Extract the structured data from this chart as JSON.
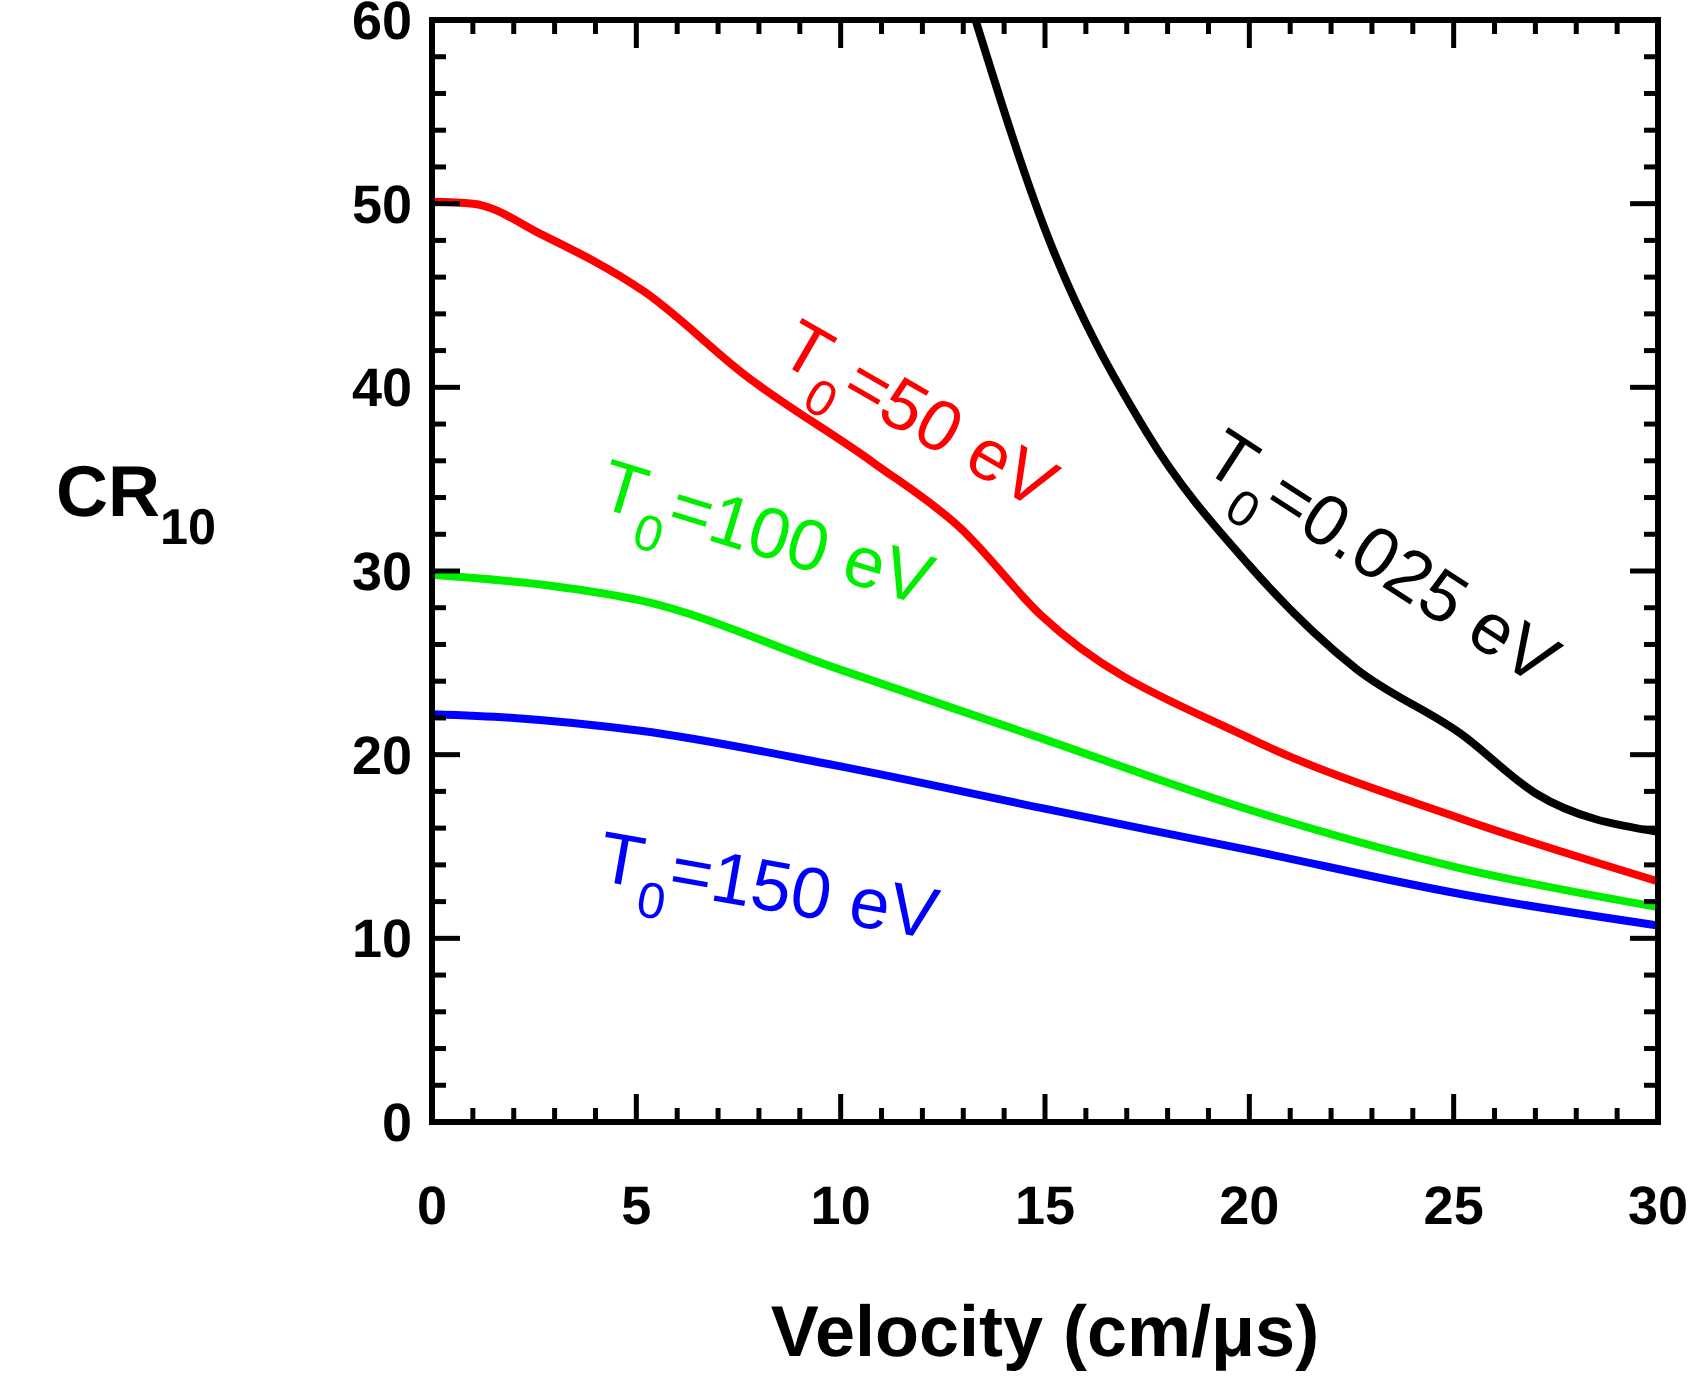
{
  "chart_data": {
    "type": "line",
    "xlabel": "Velocity (cm/μs)",
    "ylabel": "CR$_{10}$",
    "xlim": [
      0,
      30
    ],
    "ylim": [
      0,
      60
    ],
    "xticks": [
      0,
      {
        "value": 1,
        "label": null
      },
      {
        "value": 2,
        "label": null
      },
      {
        "value": 3,
        "label": null
      },
      {
        "value": 4,
        "label": null
      },
      5,
      {
        "value": 6,
        "label": null
      },
      {
        "value": 7,
        "label": null
      },
      {
        "value": 8,
        "label": null
      },
      {
        "value": 9,
        "label": null
      },
      10,
      {
        "value": 11,
        "label": null
      },
      {
        "value": 12,
        "label": null
      },
      {
        "value": 13,
        "label": null
      },
      {
        "value": 14,
        "label": null
      },
      15,
      {
        "value": 16,
        "label": null
      },
      {
        "value": 17,
        "label": null
      },
      {
        "value": 18,
        "label": null
      },
      {
        "value": 19,
        "label": null
      },
      20,
      {
        "value": 21,
        "label": null
      },
      {
        "value": 22,
        "label": null
      },
      {
        "value": 23,
        "label": null
      },
      {
        "value": 24,
        "label": null
      },
      25,
      {
        "value": 26,
        "label": null
      },
      {
        "value": 27,
        "label": null
      },
      {
        "value": 28,
        "label": null
      },
      {
        "value": 29,
        "label": null
      },
      30
    ],
    "yticks": [
      0,
      {
        "value": 2,
        "label": null
      },
      {
        "value": 4,
        "label": null
      },
      {
        "value": 6,
        "label": null
      },
      {
        "value": 8,
        "label": null
      },
      10,
      {
        "value": 12,
        "label": null
      },
      {
        "value": 14,
        "label": null
      },
      {
        "value": 16,
        "label": null
      },
      {
        "value": 18,
        "label": null
      },
      20,
      {
        "value": 22,
        "label": null
      },
      {
        "value": 24,
        "label": null
      },
      {
        "value": 26,
        "label": null
      },
      {
        "value": 28,
        "label": null
      },
      30,
      {
        "value": 32,
        "label": null
      },
      {
        "value": 34,
        "label": null
      },
      {
        "value": 36,
        "label": null
      },
      {
        "value": 38,
        "label": null
      },
      40,
      {
        "value": 42,
        "label": null
      },
      {
        "value": 44,
        "label": null
      },
      {
        "value": 46,
        "label": null
      },
      {
        "value": 48,
        "label": null
      },
      50,
      {
        "value": 52,
        "label": null
      },
      {
        "value": 54,
        "label": null
      },
      {
        "value": 56,
        "label": null
      },
      {
        "value": 58,
        "label": null
      },
      60
    ],
    "grid": false,
    "legend": "right",
    "marker": "none",
    "line_style": "solid",
    "series": [
      {
        "name": "T$_{0}$=0.025 eV",
        "color": "#000000",
        "x": [
          13.3,
          15,
          17.5,
          20,
          22.6,
          25.2,
          27,
          30
        ],
        "values": [
          60,
          48.6,
          37.5,
          30.3,
          24.7,
          21.1,
          17.9,
          15.8
        ]
      },
      {
        "name": "T$_{0}$=50 eV",
        "color": "#ff0000",
        "x": [
          0,
          1,
          2.7,
          5.2,
          7.7,
          10.8,
          12.9,
          14.9,
          20,
          25.2,
          30
        ],
        "values": [
          50.1,
          50,
          48.3,
          45.2,
          40.6,
          35.9,
          32.4,
          27.6,
          20.9,
          16.5,
          13.1
        ]
      },
      {
        "name": "T$_{0}$=100 eV",
        "color": "#00ee00",
        "x": [
          0,
          2.9,
          5.1,
          9.9,
          14.9,
          20,
          25.2,
          30
        ],
        "values": [
          29.8,
          29.2,
          28.4,
          24.7,
          20.9,
          17,
          13.8,
          11.7
        ]
      },
      {
        "name": "T$_{0}$=150 eV",
        "color": "#0000ff",
        "x": [
          0,
          2,
          5.1,
          9.9,
          14.9,
          20,
          25.2,
          30
        ],
        "values": [
          22.2,
          22,
          21.3,
          19.4,
          17.1,
          14.8,
          12.4,
          10.7
        ]
      }
    ]
  }
}
